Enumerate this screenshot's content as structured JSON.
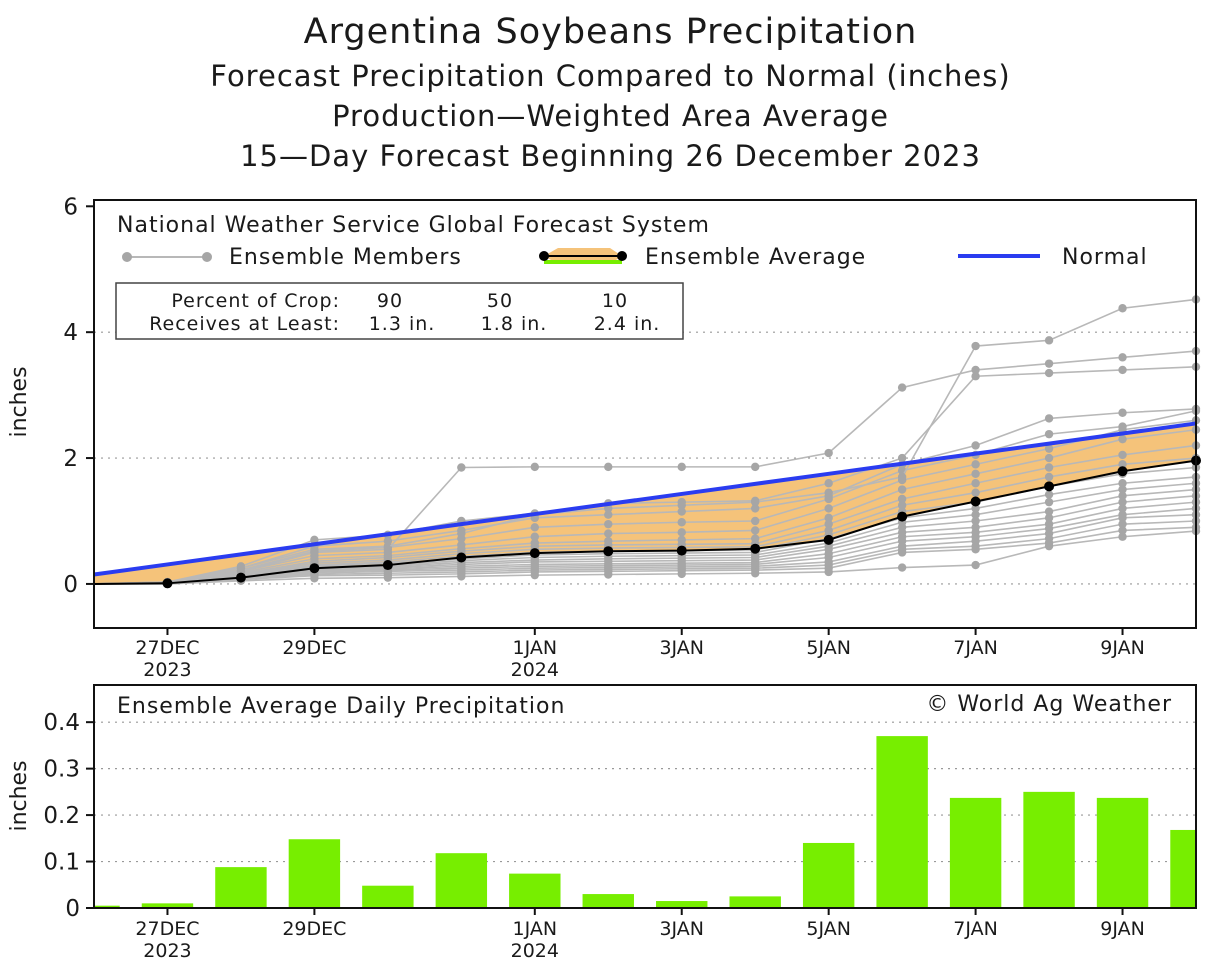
{
  "titles": {
    "main": "Argentina Soybeans Precipitation",
    "sub1": "Forecast Precipitation Compared to Normal (inches)",
    "sub2": "Production—Weighted Area Average",
    "sub3": "15—Day Forecast Beginning 26 December 2023"
  },
  "legend": {
    "source": "National Weather Service Global Forecast System",
    "members": "Ensemble Members",
    "average": "Ensemble Average",
    "normal": "Normal"
  },
  "crop_box": {
    "row1_label": "Percent of Crop:",
    "row2_label": "Receives at Least:",
    "percents": [
      "90",
      "50",
      "10"
    ],
    "amounts": [
      "1.3 in.",
      "1.8 in.",
      "2.4 in."
    ]
  },
  "bottom_panel": {
    "title": "Ensemble Average Daily Precipitation",
    "credit": "© World Ag Weather"
  },
  "colors": {
    "normal": "#2a3cf0",
    "average_fill": "#f5c37a",
    "bar": "#77ee00",
    "member": "#b8b8b8",
    "member_point": "#a6a6a6"
  },
  "chart_data": [
    {
      "type": "line",
      "title": "Argentina Soybeans Precipitation",
      "ylabel": "inches",
      "xlim": [
        -1,
        14
      ],
      "ylim": [
        -0.7,
        6.1
      ],
      "yticks": [
        0,
        2,
        4,
        6
      ],
      "x_tick_labels": [
        {
          "x": 0,
          "line1": "27DEC",
          "line2": "2023"
        },
        {
          "x": 2,
          "line1": "29DEC",
          "line2": ""
        },
        {
          "x": 5,
          "line1": "1JAN",
          "line2": "2024"
        },
        {
          "x": 7,
          "line1": "3JAN",
          "line2": ""
        },
        {
          "x": 9,
          "line1": "5JAN",
          "line2": ""
        },
        {
          "x": 11,
          "line1": "7JAN",
          "line2": ""
        },
        {
          "x": 13,
          "line1": "9JAN",
          "line2": ""
        }
      ],
      "x": [
        -1,
        0,
        1,
        2,
        3,
        4,
        5,
        6,
        7,
        8,
        9,
        10,
        11,
        12,
        13,
        14
      ],
      "series": [
        {
          "name": "Normal",
          "values": [
            0.15,
            0.31,
            0.47,
            0.63,
            0.79,
            0.95,
            1.11,
            1.27,
            1.43,
            1.59,
            1.75,
            1.91,
            2.07,
            2.23,
            2.39,
            2.55
          ]
        },
        {
          "name": "Ensemble Average",
          "values": [
            0.0,
            0.01,
            0.1,
            0.25,
            0.3,
            0.42,
            0.49,
            0.52,
            0.53,
            0.56,
            0.7,
            1.07,
            1.31,
            1.55,
            1.79,
            1.96
          ]
        }
      ],
      "ensemble_members": [
        [
          0,
          0,
          0.05,
          0.09,
          0.1,
          0.12,
          0.14,
          0.15,
          0.16,
          0.17,
          0.19,
          0.26,
          0.3,
          0.6,
          0.75,
          0.84
        ],
        [
          0,
          0,
          0.07,
          0.13,
          0.14,
          0.16,
          0.19,
          0.2,
          0.21,
          0.22,
          0.25,
          0.5,
          0.55,
          0.65,
          0.85,
          0.9
        ],
        [
          0,
          0,
          0.08,
          0.15,
          0.17,
          0.19,
          0.22,
          0.23,
          0.24,
          0.25,
          0.3,
          0.55,
          0.6,
          0.72,
          0.95,
          1.0
        ],
        [
          0,
          0,
          0.09,
          0.17,
          0.2,
          0.22,
          0.25,
          0.26,
          0.27,
          0.28,
          0.35,
          0.6,
          0.68,
          0.8,
          1.05,
          1.1
        ],
        [
          0,
          0.01,
          0.1,
          0.19,
          0.22,
          0.25,
          0.28,
          0.29,
          0.3,
          0.31,
          0.42,
          0.68,
          0.75,
          0.88,
          1.1,
          1.2
        ],
        [
          0,
          0.01,
          0.1,
          0.2,
          0.24,
          0.28,
          0.31,
          0.32,
          0.33,
          0.34,
          0.48,
          0.75,
          0.82,
          0.95,
          1.2,
          1.3
        ],
        [
          0,
          0.01,
          0.11,
          0.22,
          0.26,
          0.31,
          0.35,
          0.36,
          0.37,
          0.38,
          0.55,
          0.82,
          0.9,
          1.05,
          1.3,
          1.4
        ],
        [
          0,
          0.01,
          0.12,
          0.24,
          0.28,
          0.34,
          0.38,
          0.4,
          0.41,
          0.42,
          0.6,
          0.9,
          1.0,
          1.15,
          1.4,
          1.5
        ],
        [
          0,
          0.01,
          0.12,
          0.26,
          0.3,
          0.37,
          0.42,
          0.44,
          0.45,
          0.46,
          0.65,
          0.98,
          1.1,
          1.3,
          1.5,
          1.6
        ],
        [
          0,
          0.01,
          0.13,
          0.28,
          0.33,
          0.4,
          0.46,
          0.48,
          0.49,
          0.5,
          0.72,
          1.05,
          1.2,
          1.42,
          1.6,
          1.7
        ],
        [
          0,
          0.01,
          0.14,
          0.3,
          0.35,
          0.44,
          0.5,
          0.52,
          0.53,
          0.54,
          0.78,
          1.15,
          1.3,
          1.55,
          1.75,
          1.85
        ],
        [
          0,
          0.01,
          0.15,
          0.33,
          0.38,
          0.48,
          0.55,
          0.57,
          0.58,
          0.59,
          0.85,
          1.25,
          1.45,
          1.7,
          1.9,
          2.0
        ],
        [
          0,
          0.01,
          0.16,
          0.36,
          0.42,
          0.52,
          0.6,
          0.62,
          0.63,
          0.64,
          0.95,
          1.35,
          1.6,
          1.85,
          2.05,
          2.2
        ],
        [
          0,
          0.02,
          0.18,
          0.4,
          0.45,
          0.56,
          0.65,
          0.68,
          0.7,
          0.72,
          1.05,
          1.5,
          1.75,
          2.0,
          2.3,
          2.45
        ],
        [
          0,
          0.02,
          0.2,
          0.45,
          0.5,
          0.62,
          0.75,
          0.8,
          0.82,
          0.85,
          1.2,
          1.65,
          1.9,
          2.15,
          2.45,
          2.6
        ],
        [
          0,
          0.02,
          0.22,
          0.52,
          0.58,
          0.72,
          0.9,
          0.95,
          0.98,
          1.0,
          1.35,
          1.8,
          2.05,
          2.38,
          2.5,
          2.75
        ],
        [
          0,
          0.03,
          0.25,
          0.6,
          0.68,
          0.85,
          1.05,
          1.1,
          1.15,
          1.2,
          1.4,
          1.9,
          2.2,
          2.63,
          2.72,
          2.78
        ],
        [
          0,
          0.03,
          0.28,
          0.7,
          0.78,
          1.0,
          1.12,
          1.28,
          1.3,
          1.32,
          1.6,
          2.0,
          3.3,
          3.35,
          3.4,
          3.45
        ],
        [
          0,
          0.03,
          0.25,
          0.55,
          0.6,
          0.8,
          1.1,
          1.2,
          1.25,
          1.3,
          1.45,
          1.7,
          3.78,
          3.87,
          4.38,
          4.52
        ],
        [
          0,
          0.02,
          0.2,
          0.5,
          0.55,
          1.85,
          1.86,
          1.86,
          1.86,
          1.86,
          2.08,
          3.12,
          3.4,
          3.5,
          3.6,
          3.7
        ]
      ]
    },
    {
      "type": "bar",
      "title": "Ensemble Average Daily Precipitation",
      "ylabel": "inches",
      "ylim": [
        0,
        0.48
      ],
      "yticks": [
        0,
        0.1,
        0.2,
        0.3,
        0.4
      ],
      "ytick_labels": [
        "0",
        "0.1",
        "0.2",
        "0.3",
        "0.4"
      ],
      "x": [
        -1,
        0,
        1,
        2,
        3,
        4,
        5,
        6,
        7,
        8,
        9,
        10,
        11,
        12,
        13,
        14
      ],
      "values": [
        0.005,
        0.01,
        0.088,
        0.148,
        0.048,
        0.118,
        0.074,
        0.03,
        0.015,
        0.025,
        0.14,
        0.37,
        0.237,
        0.25,
        0.237,
        0.168
      ]
    }
  ]
}
